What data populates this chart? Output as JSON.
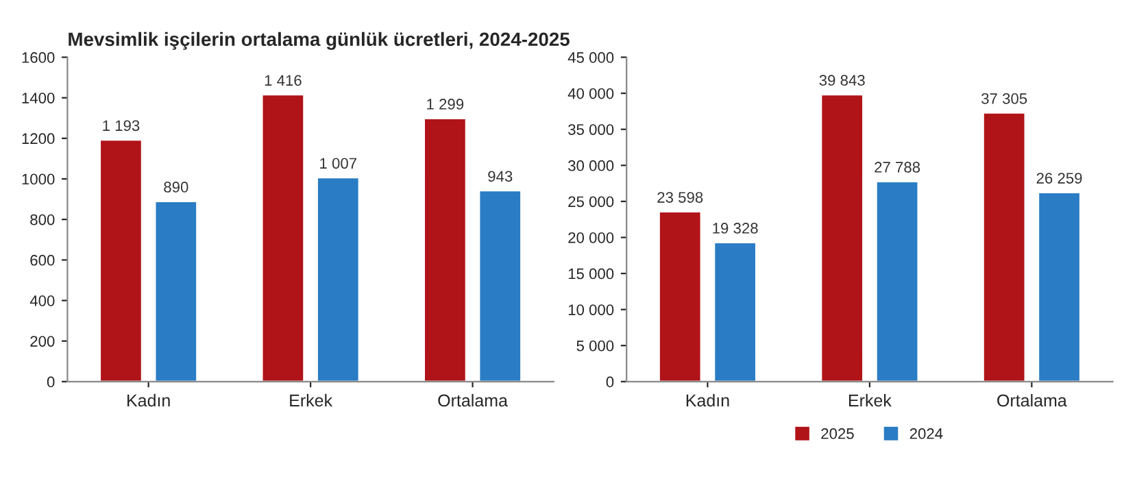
{
  "chart_data": [
    {
      "type": "bar",
      "title": "Mevsimlik işçilerin ortalama günlük ücretleri, 2024-2025",
      "categories": [
        "Kadın",
        "Erkek",
        "Ortalama"
      ],
      "series": [
        {
          "color": "#b01418",
          "values": [
            1193,
            1416,
            1299
          ],
          "value_labels": [
            "1 193",
            "1 416",
            "1 299"
          ]
        },
        {
          "color": "#2a7dc4",
          "values": [
            890,
            1007,
            943
          ],
          "value_labels": [
            "890",
            "1 007",
            "943"
          ]
        }
      ],
      "ylim": [
        0,
        1600
      ],
      "yticks": [
        0,
        200,
        400,
        600,
        800,
        1000,
        1200,
        1400,
        1600
      ],
      "grid": false,
      "legend": false
    },
    {
      "type": "bar",
      "categories": [
        "Kadın",
        "Erkek",
        "Ortalama"
      ],
      "series": [
        {
          "name": "2025",
          "color": "#b01418",
          "values": [
            23598,
            39843,
            37305
          ],
          "value_labels": [
            "23 598",
            "39 843",
            "37 305"
          ]
        },
        {
          "name": "2024",
          "color": "#2a7dc4",
          "values": [
            19328,
            27788,
            26259
          ],
          "value_labels": [
            "19 328",
            "27 788",
            "26 259"
          ]
        }
      ],
      "ylim": [
        0,
        45000
      ],
      "yticks": [
        0,
        {
          "value": 5000,
          "label": "5 000"
        },
        {
          "value": 10000,
          "label": "10 000"
        },
        {
          "value": 15000,
          "label": "15 000"
        },
        {
          "value": 20000,
          "label": "20 000"
        },
        {
          "value": 25000,
          "label": "25 000"
        },
        {
          "value": 30000,
          "label": "30 000"
        },
        {
          "value": 35000,
          "label": "35 000"
        },
        {
          "value": 40000,
          "label": "40 000"
        },
        {
          "value": 45000,
          "label": "45 000"
        }
      ],
      "grid": false,
      "legend": "bottom"
    }
  ]
}
